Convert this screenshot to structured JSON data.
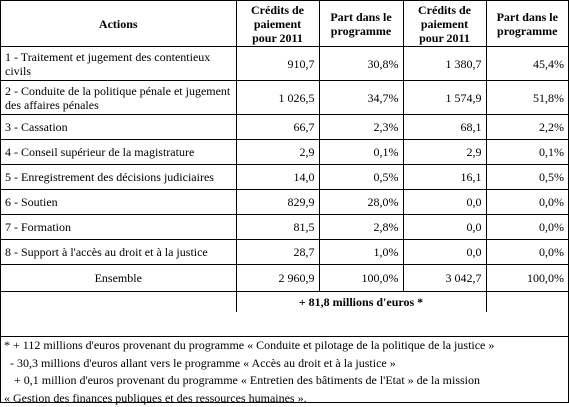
{
  "headers": {
    "actions": "Actions",
    "credits_a": "Crédits de paiement pour 2011",
    "share_a": "Part dans le programme",
    "credits_b": "Crédits de paiement pour 2011",
    "share_b": "Part dans le programme"
  },
  "rows": [
    {
      "label": "1 - Traitement et jugement des contentieux civils",
      "c1": "910,7",
      "p1": "30,8%",
      "c2": "1 380,7",
      "p2": "45,4%"
    },
    {
      "label": "2 - Conduite de la politique pénale et jugement des affaires pénales",
      "c1": "1 026,5",
      "p1": "34,7%",
      "c2": "1 574,9",
      "p2": "51,8%"
    },
    {
      "label": "3 - Cassation",
      "c1": "66,7",
      "p1": "2,3%",
      "c2": "68,1",
      "p2": "2,2%"
    },
    {
      "label": "4 - Conseil supérieur de la magistrature",
      "c1": "2,9",
      "p1": "0,1%",
      "c2": "2,9",
      "p2": "0,1%"
    },
    {
      "label": "5 - Enregistrement des décisions judiciaires",
      "c1": "14,0",
      "p1": "0,5%",
      "c2": "16,1",
      "p2": "0,5%"
    },
    {
      "label": "6 - Soutien",
      "c1": "829,9",
      "p1": "28,0%",
      "c2": "0,0",
      "p2": "0,0%"
    },
    {
      "label": "7 - Formation",
      "c1": "81,5",
      "p1": "2,8%",
      "c2": "0,0",
      "p2": "0,0%"
    },
    {
      "label": "8 - Support à l'accès au droit et à la justice",
      "c1": "28,7",
      "p1": "1,0%",
      "c2": "0,0",
      "p2": "0,0%"
    }
  ],
  "total": {
    "label": "Ensemble",
    "c1": "2 960,9",
    "p1": "100,0%",
    "c2": "3 042,7",
    "p2": "100,0%"
  },
  "plus_line": "+ 81,8 millions d'euros *",
  "notes": [
    "* + 112 millions d'euros provenant du programme « Conduite et pilotage de la politique de la justice »",
    "- 30,3 millions d'euros allant vers le programme « Accès au droit et à la justice »",
    "+ 0,1 million d'euros provenant du programme « Entretien des bâtiments de l'Etat » de la mission",
    "« Gestion des finances publiques et des ressources humaines »."
  ]
}
